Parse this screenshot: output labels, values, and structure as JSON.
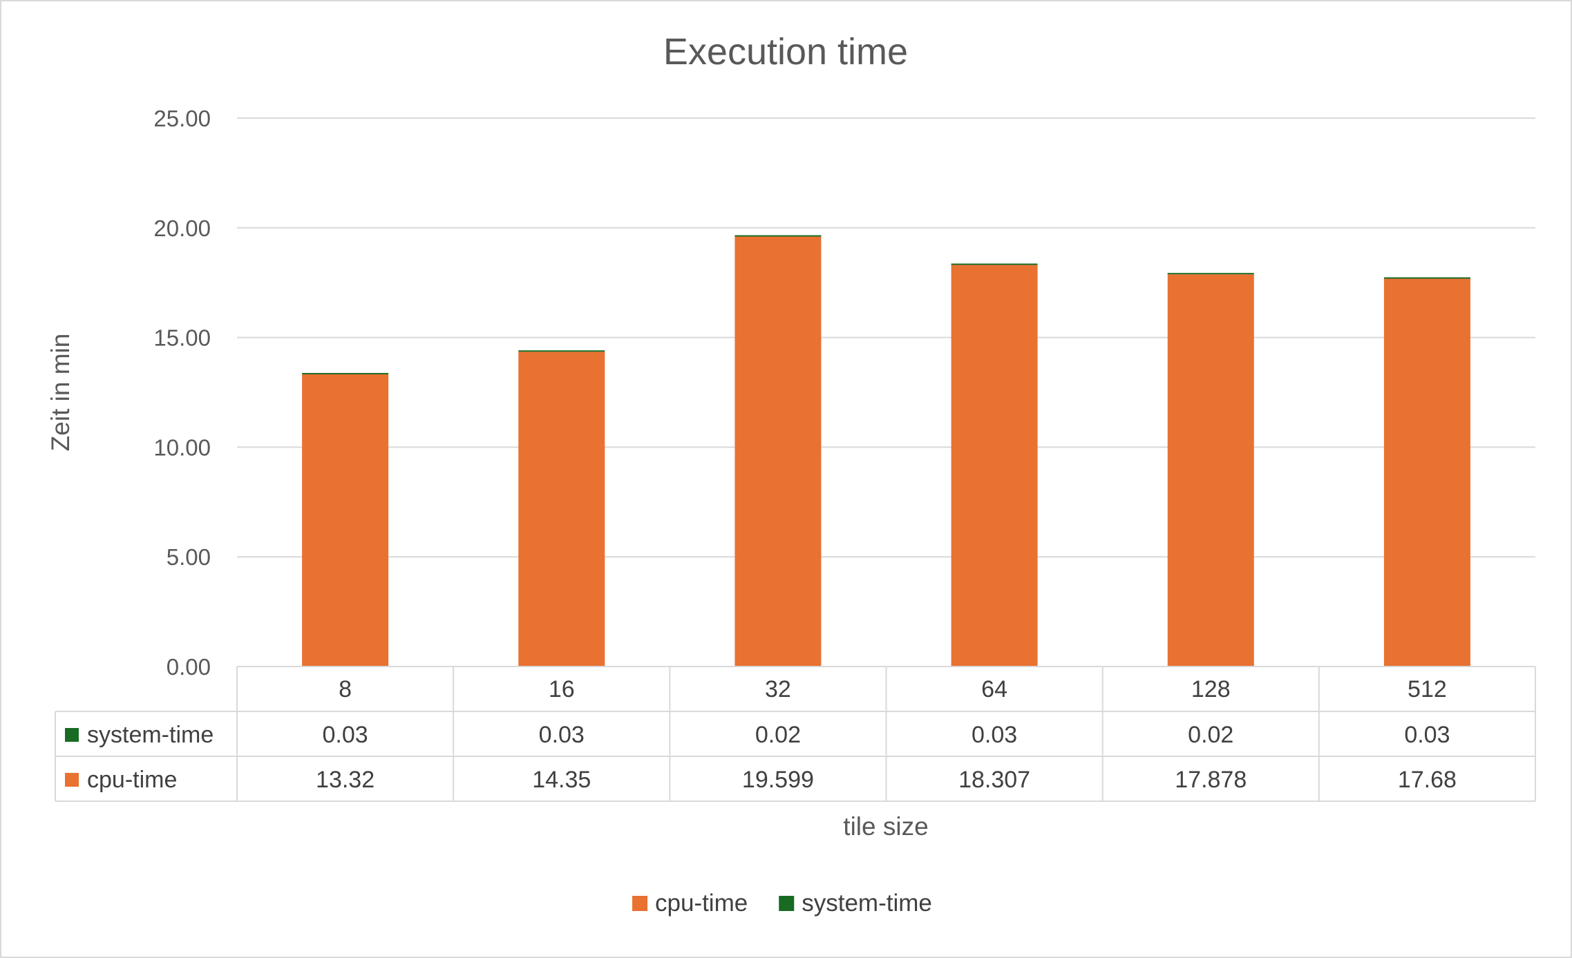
{
  "chart_data": {
    "type": "bar",
    "stacked": true,
    "title": "Execution time",
    "xlabel": "tile size",
    "ylabel": "Zeit in min",
    "categories": [
      "8",
      "16",
      "32",
      "64",
      "128",
      "512"
    ],
    "ylim": [
      0,
      25
    ],
    "yticks": [
      "0.00",
      "5.00",
      "10.00",
      "15.00",
      "20.00",
      "25.00"
    ],
    "grid": true,
    "legend_position": "bottom",
    "series": [
      {
        "name": "cpu-time",
        "color": "#E97132",
        "values": [
          13.32,
          14.35,
          19.599,
          18.307,
          17.878,
          17.68
        ],
        "labels": [
          "13.32",
          "14.35",
          "19.599",
          "18.307",
          "17.878",
          "17.68"
        ]
      },
      {
        "name": "system-time",
        "color": "#196B24",
        "values": [
          0.03,
          0.03,
          0.02,
          0.03,
          0.02,
          0.03
        ],
        "labels": [
          "0.03",
          "0.03",
          "0.02",
          "0.03",
          "0.02",
          "0.03"
        ]
      }
    ],
    "table_rows": [
      "system-time",
      "cpu-time"
    ]
  }
}
